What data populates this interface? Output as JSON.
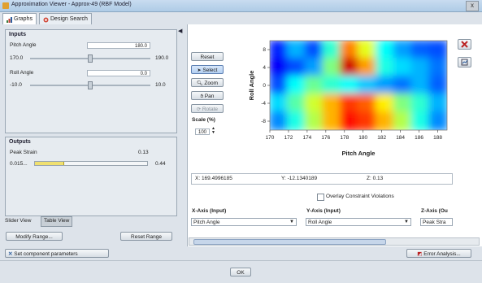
{
  "window": {
    "title": "Approximation Viewer - Approx-49 (RBF Model)",
    "close_label": "x"
  },
  "tabs": [
    {
      "label": "Graphs"
    },
    {
      "label": "Design Search"
    }
  ],
  "inputs": {
    "title": "Inputs",
    "pitch": {
      "label": "Pitch Angle",
      "value": "180.0",
      "min": "170.0",
      "max": "190.0"
    },
    "roll": {
      "label": "Roll Angle",
      "value": "0.0",
      "min": "-10.0",
      "max": "10.0"
    }
  },
  "outputs": {
    "title": "Outputs",
    "peak": {
      "label": "Peak Strain",
      "value": "0.13",
      "min": "0.015...",
      "max": "0.44",
      "fill_fraction": 0.25
    }
  },
  "view_tabs": {
    "slider": "Slider View",
    "table": "Table View"
  },
  "left_buttons": {
    "modify": "Modify Range...",
    "reset": "Reset Range"
  },
  "tools": {
    "reset": "Reset",
    "select": "Select",
    "zoom": "Zoom",
    "pan": "Pan",
    "rotate": "Rotate",
    "scale_label": "Scale (%)",
    "scale_value": "100"
  },
  "readout": {
    "x": "X: 169.4996185",
    "y": "Y: -12.1340189",
    "z": "Z: 0.13"
  },
  "overlay": {
    "label": "Overlay Constraint Violations"
  },
  "axes": {
    "x": {
      "label": "X-Axis (Input)",
      "value": "Pitch Angle"
    },
    "y": {
      "label": "Y-Axis (Input)",
      "value": "Roll Angle"
    },
    "z": {
      "label": "Z-Axis (Ou",
      "value": "Peak Stra"
    }
  },
  "bottom": {
    "set_params": "Set component parameters",
    "error_analysis": "Error Analysis..."
  },
  "footer": {
    "ok": "OK"
  },
  "colors": {
    "accent": "#2f5f9e",
    "fill": "#f0e070"
  },
  "chart_data": {
    "type": "heatmap",
    "xlabel": "Pitch Angle",
    "ylabel": "Roll Angle",
    "xlim": [
      170,
      189
    ],
    "ylim": [
      -10,
      10
    ],
    "x_ticks": [
      "170",
      "172",
      "174",
      "176",
      "178",
      "180",
      "182",
      "184",
      "186",
      "188"
    ],
    "y_ticks": [
      "8",
      "4",
      "0",
      "-4",
      "-8"
    ],
    "grid_rows": 5,
    "grid_cols": 10,
    "values": [
      [
        0.16,
        0.3,
        0.2,
        0.42,
        0.75,
        0.6,
        0.38,
        0.28,
        0.22,
        0.2
      ],
      [
        0.12,
        0.2,
        0.28,
        0.5,
        0.92,
        0.72,
        0.4,
        0.34,
        0.3,
        0.24
      ],
      [
        0.2,
        0.38,
        0.48,
        0.42,
        0.38,
        0.32,
        0.28,
        0.24,
        0.3,
        0.22
      ],
      [
        0.34,
        0.46,
        0.58,
        0.7,
        0.82,
        0.78,
        0.64,
        0.5,
        0.42,
        0.3
      ],
      [
        0.26,
        0.4,
        0.55,
        0.7,
        0.86,
        0.82,
        0.7,
        0.55,
        0.4,
        0.26
      ]
    ]
  }
}
